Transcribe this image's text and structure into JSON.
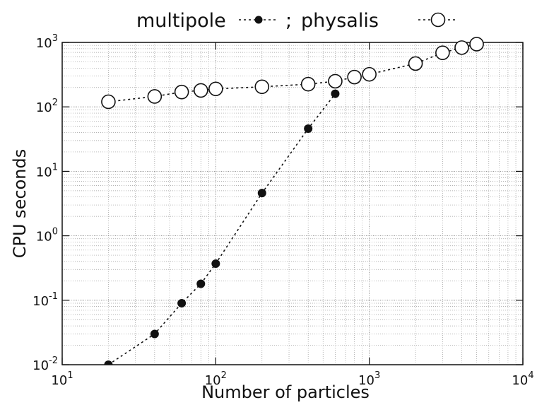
{
  "chart_data": {
    "type": "scatter",
    "title": "",
    "legend_text": {
      "multipole_label": "multipole",
      "separator": ";",
      "physalis_label": "physalis"
    },
    "xlabel": "Number of particles",
    "ylabel": "CPU seconds",
    "x_scale": "log",
    "y_scale": "log",
    "xlim": [
      10,
      10000
    ],
    "ylim": [
      0.01,
      1000
    ],
    "grid": true,
    "legend_position": "top",
    "x_ticks": [
      {
        "value": 10,
        "base": "10",
        "exp": "1"
      },
      {
        "value": 100,
        "base": "10",
        "exp": "2"
      },
      {
        "value": 1000,
        "base": "10",
        "exp": "3"
      },
      {
        "value": 10000,
        "base": "10",
        "exp": "4"
      }
    ],
    "y_ticks": [
      {
        "value": 0.01,
        "base": "10",
        "exp": "-2"
      },
      {
        "value": 0.1,
        "base": "10",
        "exp": "-1"
      },
      {
        "value": 1,
        "base": "10",
        "exp": "0"
      },
      {
        "value": 10,
        "base": "10",
        "exp": "1"
      },
      {
        "value": 100,
        "base": "10",
        "exp": "2"
      },
      {
        "value": 1000,
        "base": "10",
        "exp": "3"
      }
    ],
    "series": [
      {
        "name": "multipole",
        "marker": "filled-circle",
        "line_style": "dotted",
        "color": "#111111",
        "points": [
          {
            "x": 20,
            "y": 0.01
          },
          {
            "x": 40,
            "y": 0.03
          },
          {
            "x": 60,
            "y": 0.09
          },
          {
            "x": 80,
            "y": 0.18
          },
          {
            "x": 100,
            "y": 0.37
          },
          {
            "x": 200,
            "y": 4.6
          },
          {
            "x": 400,
            "y": 46
          },
          {
            "x": 600,
            "y": 160
          }
        ]
      },
      {
        "name": "physalis",
        "marker": "open-circle",
        "line_style": "dotted",
        "color": "#111111",
        "points": [
          {
            "x": 20,
            "y": 120
          },
          {
            "x": 40,
            "y": 145
          },
          {
            "x": 60,
            "y": 170
          },
          {
            "x": 80,
            "y": 180
          },
          {
            "x": 100,
            "y": 190
          },
          {
            "x": 200,
            "y": 205
          },
          {
            "x": 400,
            "y": 225
          },
          {
            "x": 600,
            "y": 250
          },
          {
            "x": 800,
            "y": 290
          },
          {
            "x": 1000,
            "y": 320
          },
          {
            "x": 2000,
            "y": 470
          },
          {
            "x": 3000,
            "y": 690
          },
          {
            "x": 4000,
            "y": 830
          },
          {
            "x": 5000,
            "y": 940
          }
        ]
      }
    ]
  }
}
